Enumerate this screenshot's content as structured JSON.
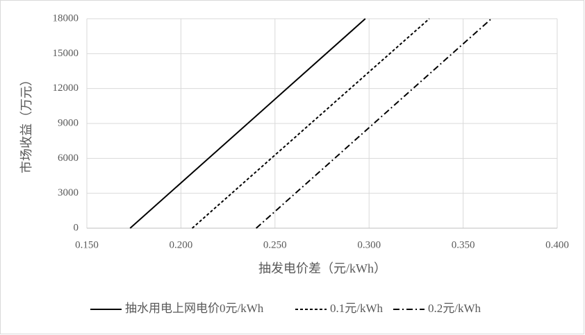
{
  "chart_data": {
    "type": "line",
    "xlabel": "抽发电价差（元/kWh）",
    "ylabel": "市场收益（万元）",
    "xlim": [
      0.15,
      0.4
    ],
    "xticks": [
      {
        "value": 0.15,
        "label": "0.150"
      },
      {
        "value": 0.2,
        "label": "0.200"
      },
      {
        "value": 0.25,
        "label": "0.250"
      },
      {
        "value": 0.3,
        "label": "0.300"
      },
      {
        "value": 0.35,
        "label": "0.350"
      },
      {
        "value": 0.4,
        "label": "0.400"
      }
    ],
    "ylim": [
      0,
      18000
    ],
    "yticks": [
      0,
      3000,
      6000,
      9000,
      12000,
      15000,
      18000
    ],
    "grid": true,
    "legend": "bottom",
    "series": [
      {
        "name": "抽水用电上网电价0元/kWh",
        "color": "#000000",
        "dash": "solid",
        "x": [
          0.173,
          0.298
        ],
        "values": [
          0,
          18000
        ]
      },
      {
        "name": "0.1元/kWh",
        "color": "#000000",
        "dash": "dashed",
        "x": [
          0.206,
          0.332
        ],
        "values": [
          0,
          18000
        ]
      },
      {
        "name": "0.2元/kWh",
        "color": "#000000",
        "dash": "dashdot",
        "x": [
          0.24,
          0.365
        ],
        "values": [
          0,
          18000
        ]
      }
    ]
  }
}
